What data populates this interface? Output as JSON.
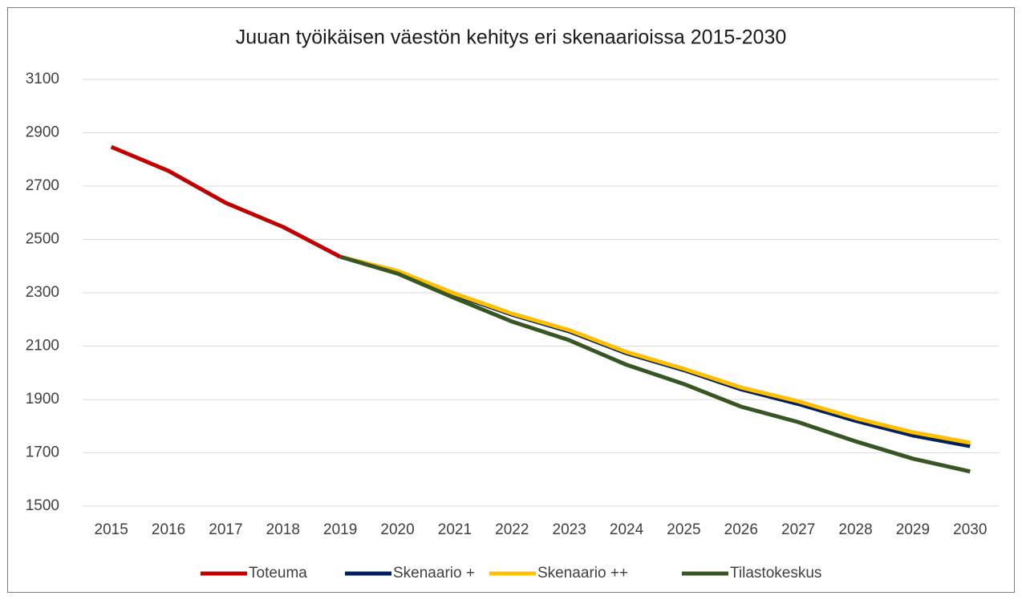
{
  "chart_data": {
    "type": "line",
    "title": "Juuan työikäisen väestön kehitys eri skenaarioissa 2015-2030",
    "categories": [
      "2015",
      "2016",
      "2017",
      "2018",
      "2019",
      "2020",
      "2021",
      "2022",
      "2023",
      "2024",
      "2025",
      "2026",
      "2027",
      "2028",
      "2029",
      "2030"
    ],
    "series": [
      {
        "name": "Toteuma",
        "color": "#c00000",
        "values": [
          2847,
          2757,
          2637,
          2547,
          2435,
          null,
          null,
          null,
          null,
          null,
          null,
          null,
          null,
          null,
          null,
          null
        ]
      },
      {
        "name": "Skenaario +",
        "color": "#002060",
        "values": [
          null,
          null,
          null,
          null,
          2435,
          2380,
          2293,
          2218,
          2155,
          2073,
          2010,
          1938,
          1883,
          1820,
          1765,
          1725
        ]
      },
      {
        "name": "Skenaario ++",
        "color": "#ffc000",
        "values": [
          null,
          null,
          null,
          null,
          2435,
          2382,
          2297,
          2222,
          2160,
          2078,
          2015,
          1945,
          1893,
          1830,
          1777,
          1738
        ]
      },
      {
        "name": "Tilastokeskus",
        "color": "#375623",
        "values": [
          null,
          null,
          null,
          null,
          2435,
          2372,
          2280,
          2192,
          2122,
          2030,
          1958,
          1873,
          1815,
          1743,
          1678,
          1630
        ]
      }
    ],
    "ylim": [
      1500,
      3100
    ],
    "yticks": [
      1500,
      1700,
      1900,
      2100,
      2300,
      2500,
      2700,
      2900,
      3100
    ],
    "grid": true,
    "legend": "bottom"
  }
}
